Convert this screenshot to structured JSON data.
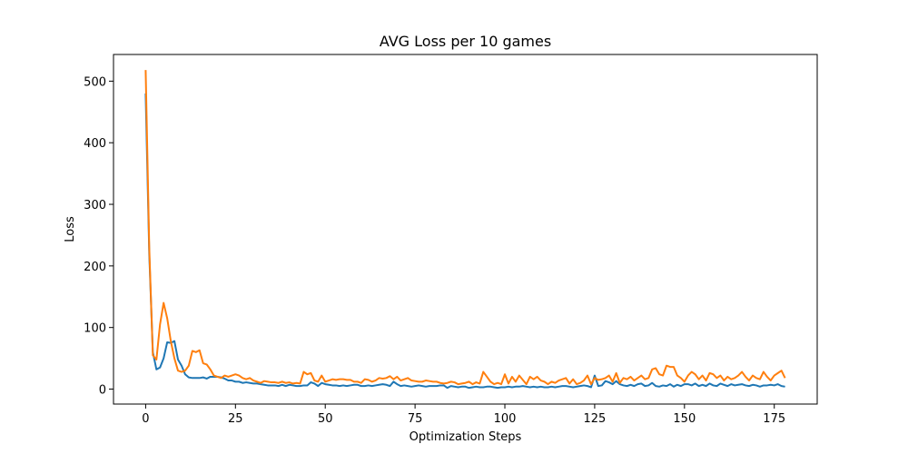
{
  "chart_data": {
    "type": "line",
    "title": "AVG Loss per 10 games",
    "xlabel": "Optimization Steps",
    "ylabel": "Loss",
    "xlim": [
      -8.95,
      186.95
    ],
    "ylim": [
      -24.3,
      543.3
    ],
    "xticks": [
      0,
      25,
      50,
      75,
      100,
      125,
      150,
      175
    ],
    "yticks": [
      0,
      100,
      200,
      300,
      400,
      500
    ],
    "grid": false,
    "legend": "none",
    "x": [
      0,
      1,
      2,
      3,
      4,
      5,
      6,
      7,
      8,
      9,
      10,
      11,
      12,
      13,
      14,
      15,
      16,
      17,
      18,
      19,
      20,
      21,
      22,
      23,
      24,
      25,
      26,
      27,
      28,
      29,
      30,
      31,
      32,
      33,
      34,
      35,
      36,
      37,
      38,
      39,
      40,
      41,
      42,
      43,
      44,
      45,
      46,
      47,
      48,
      49,
      50,
      51,
      52,
      53,
      54,
      55,
      56,
      57,
      58,
      59,
      60,
      61,
      62,
      63,
      64,
      65,
      66,
      67,
      68,
      69,
      70,
      71,
      72,
      73,
      74,
      75,
      76,
      77,
      78,
      79,
      80,
      81,
      82,
      83,
      84,
      85,
      86,
      87,
      88,
      89,
      90,
      91,
      92,
      93,
      94,
      95,
      96,
      97,
      98,
      99,
      100,
      101,
      102,
      103,
      104,
      105,
      106,
      107,
      108,
      109,
      110,
      111,
      112,
      113,
      114,
      115,
      116,
      117,
      118,
      119,
      120,
      121,
      122,
      123,
      124,
      125,
      126,
      127,
      128,
      129,
      130,
      131,
      132,
      133,
      134,
      135,
      136,
      137,
      138,
      139,
      140,
      141,
      142,
      143,
      144,
      145,
      146,
      147,
      148,
      149,
      150,
      151,
      152,
      153,
      154,
      155,
      156,
      157,
      158,
      159,
      160,
      161,
      162,
      163,
      164,
      165,
      166,
      167,
      168,
      169,
      170,
      171,
      172,
      173,
      174,
      175,
      176,
      177,
      178
    ],
    "series": [
      {
        "color": "#1f77b4",
        "values": [
          480,
          220,
          60,
          32,
          35,
          50,
          76,
          75,
          78,
          48,
          38,
          24,
          19,
          18,
          18,
          18,
          19,
          17,
          20,
          20,
          20,
          19,
          17,
          14,
          14,
          12,
          12,
          10,
          11,
          10,
          9,
          9,
          8,
          7,
          6,
          6,
          6,
          5,
          7,
          5,
          7,
          6,
          5,
          5,
          6,
          6,
          11,
          9,
          5,
          10,
          8,
          7,
          6,
          6,
          5,
          6,
          5,
          6,
          7,
          7,
          5,
          5,
          6,
          5,
          6,
          7,
          8,
          7,
          5,
          12,
          8,
          5,
          6,
          5,
          4,
          5,
          6,
          5,
          4,
          5,
          5,
          5,
          6,
          6,
          2,
          5,
          4,
          3,
          4,
          4,
          2,
          3,
          4,
          3,
          3,
          4,
          4,
          3,
          2,
          3,
          3,
          4,
          3,
          4,
          4,
          5,
          4,
          3,
          4,
          3,
          4,
          3,
          3,
          4,
          3,
          4,
          5,
          5,
          4,
          3,
          4,
          5,
          6,
          5,
          3,
          22,
          5,
          6,
          13,
          11,
          8,
          13,
          8,
          6,
          5,
          7,
          5,
          8,
          9,
          5,
          6,
          10,
          5,
          4,
          6,
          5,
          8,
          4,
          7,
          5,
          8,
          8,
          6,
          9,
          5,
          7,
          5,
          9,
          6,
          5,
          9,
          7,
          5,
          8,
          6,
          7,
          8,
          6,
          5,
          7,
          6,
          4,
          6,
          6,
          7,
          6,
          8,
          5,
          4
        ]
      },
      {
        "color": "#ff7f0e",
        "values": [
          518,
          230,
          55,
          48,
          105,
          140,
          115,
          78,
          50,
          30,
          28,
          30,
          38,
          62,
          60,
          63,
          42,
          40,
          32,
          22,
          20,
          18,
          22,
          20,
          22,
          24,
          22,
          18,
          16,
          18,
          14,
          12,
          10,
          13,
          12,
          11,
          11,
          10,
          12,
          10,
          11,
          9,
          10,
          9,
          28,
          24,
          26,
          14,
          12,
          22,
          12,
          14,
          16,
          15,
          16,
          16,
          15,
          15,
          12,
          12,
          10,
          16,
          15,
          12,
          14,
          18,
          17,
          18,
          21,
          16,
          20,
          14,
          16,
          18,
          14,
          13,
          12,
          12,
          14,
          13,
          12,
          12,
          10,
          9,
          10,
          12,
          11,
          8,
          9,
          10,
          12,
          8,
          11,
          9,
          28,
          20,
          12,
          8,
          10,
          8,
          24,
          9,
          20,
          12,
          22,
          15,
          8,
          20,
          16,
          20,
          14,
          12,
          8,
          12,
          10,
          14,
          16,
          18,
          9,
          16,
          8,
          10,
          14,
          22,
          8,
          18,
          15,
          16,
          18,
          22,
          12,
          26,
          10,
          18,
          16,
          20,
          14,
          18,
          22,
          16,
          18,
          32,
          34,
          24,
          22,
          38,
          36,
          36,
          22,
          18,
          12,
          22,
          28,
          24,
          16,
          22,
          14,
          26,
          24,
          18,
          22,
          14,
          20,
          16,
          18,
          22,
          28,
          20,
          14,
          22,
          18,
          16,
          28,
          20,
          14,
          22,
          26,
          30,
          18
        ]
      }
    ]
  }
}
